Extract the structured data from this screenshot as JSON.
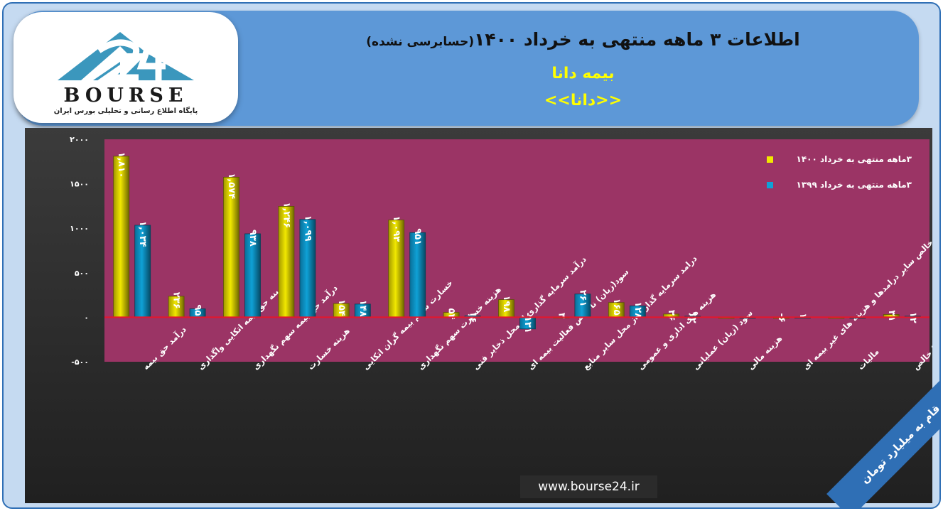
{
  "header": {
    "title_main": "اطلاعات ۳ ماهه منتهی به خرداد ۱۴۰۰",
    "title_sub": "(حسابرسی نشده)",
    "company": "بیمه دانا",
    "symbol": "<<دانا>>"
  },
  "logo": {
    "wordmark": "BOURSE",
    "tagline": "پایگاه اطلاع رسانی و تحلیلی بورس ایران"
  },
  "website": "www.bourse24.ir",
  "unit_note": "ارقام به میلیارد تومان",
  "colors": {
    "series_1400": "#f1e800",
    "series_1399": "#0fa1d6",
    "plot_bg": "#9b3465",
    "zero_line": "#e6162b"
  },
  "chart_data": {
    "type": "bar",
    "categories": [
      "درآمد حق بیمه",
      "هزینه حق بیمه اتکایی واگذاری",
      "درآمد حق بیمه سهم نگهداری",
      "هزینه خسارت",
      "خسارت سهم بیمه گران اتکایی",
      "هزینه خسارت سهم نگهداری",
      "درآمد سرمایه گذاری از محل ذخایر فنی",
      "سود(زیان) ناخالص فعالیت بیمه ای",
      "درامد سرمایه گذاری از محل سایر منابع",
      "هزینه های اداری و عمومی",
      "سود (زیان) عملیاتی",
      "هزینه مالی",
      "خالص سایر درامدها و هزینه های غیر بیمه ای",
      "مالیات",
      "سود (زیان) خالص"
    ],
    "series": [
      {
        "name": "۳ماهه منتهی به خرداد ۱۴۰۰",
        "values": [
          1810,
          236,
          1574,
          1246,
          154,
          1093,
          54,
          198,
          3,
          165,
          36,
          0,
          -6,
          0,
          31
        ],
        "labels": [
          "۱,۸۱۰",
          "۲۳۶",
          "۱,۵۷۴",
          "۱,۲۴۶",
          "۱۵۴",
          "۱,۰۹۳",
          "۵۴",
          "۱۹۸",
          "۳",
          "۱۶۵",
          "۳۶",
          "",
          "-۶",
          "",
          "۳۱"
        ]
      },
      {
        "name": "۳ماهه منتهی به خرداد ۱۳۹۹",
        "values": [
          1034,
          95,
          938,
          1099,
          148,
          951,
          16,
          -131,
          261,
          128,
          12,
          0,
          1,
          0,
          12
        ],
        "labels": [
          "۱,۰۳۴",
          "۹۵",
          "۹۳۸",
          "۱,۰۹۹",
          "۱۴۸",
          "۹۵۱",
          "۱۶",
          "-۱۳۱",
          "۲۶۱",
          "۱۲۸",
          "۱۲",
          "",
          "۱",
          "",
          "۱۲"
        ]
      }
    ],
    "yticks": [
      2000,
      1500,
      1000,
      500,
      0,
      -500
    ],
    "ytick_labels": [
      "۲۰۰۰",
      "۱۵۰۰",
      "۱۰۰۰",
      "۵۰۰",
      "۰",
      "-۵۰۰"
    ],
    "ylim": [
      -500,
      2000
    ],
    "grid": false,
    "legend": "top-right"
  }
}
